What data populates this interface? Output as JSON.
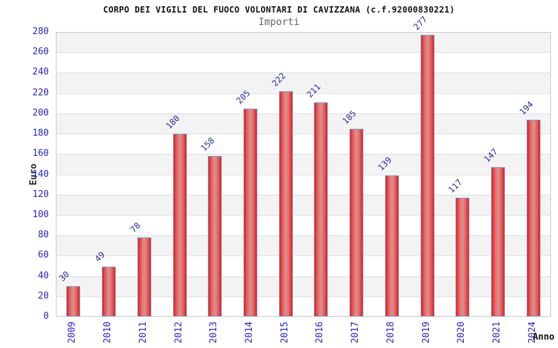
{
  "chart_data": {
    "type": "bar",
    "title": "CORPO DEI VIGILI DEL FUOCO VOLONTARI DI CAVIZZANA (c.f.92000830221)",
    "subtitle": "Importi",
    "xlabel": "Anno",
    "ylabel": "Euro",
    "categories": [
      "2009",
      "2010",
      "2011",
      "2012",
      "2013",
      "2014",
      "2015",
      "2016",
      "2017",
      "2018",
      "2019",
      "2020",
      "2021",
      "2024"
    ],
    "values": [
      30,
      49,
      78,
      180,
      158,
      205,
      222,
      211,
      185,
      139,
      277,
      117,
      147,
      194
    ],
    "ylim": [
      0,
      280
    ],
    "ytick_step": 20,
    "legend_position": "none",
    "grid": "horizontal-bands",
    "colors": {
      "bar_fill_edge": "#e41d1d",
      "bar_fill_center": "#d79292",
      "bar_border": "#7aa7da",
      "axis_tick_text": "#2323cc",
      "value_label_text": "#2b2b9e",
      "band_gray": "#f3f3f3",
      "band_white": "#ffffff",
      "gridline": "#e0e0e0",
      "plot_border": "#c9c9c9",
      "title_text": "#111111",
      "subtitle_text": "#666666"
    }
  }
}
